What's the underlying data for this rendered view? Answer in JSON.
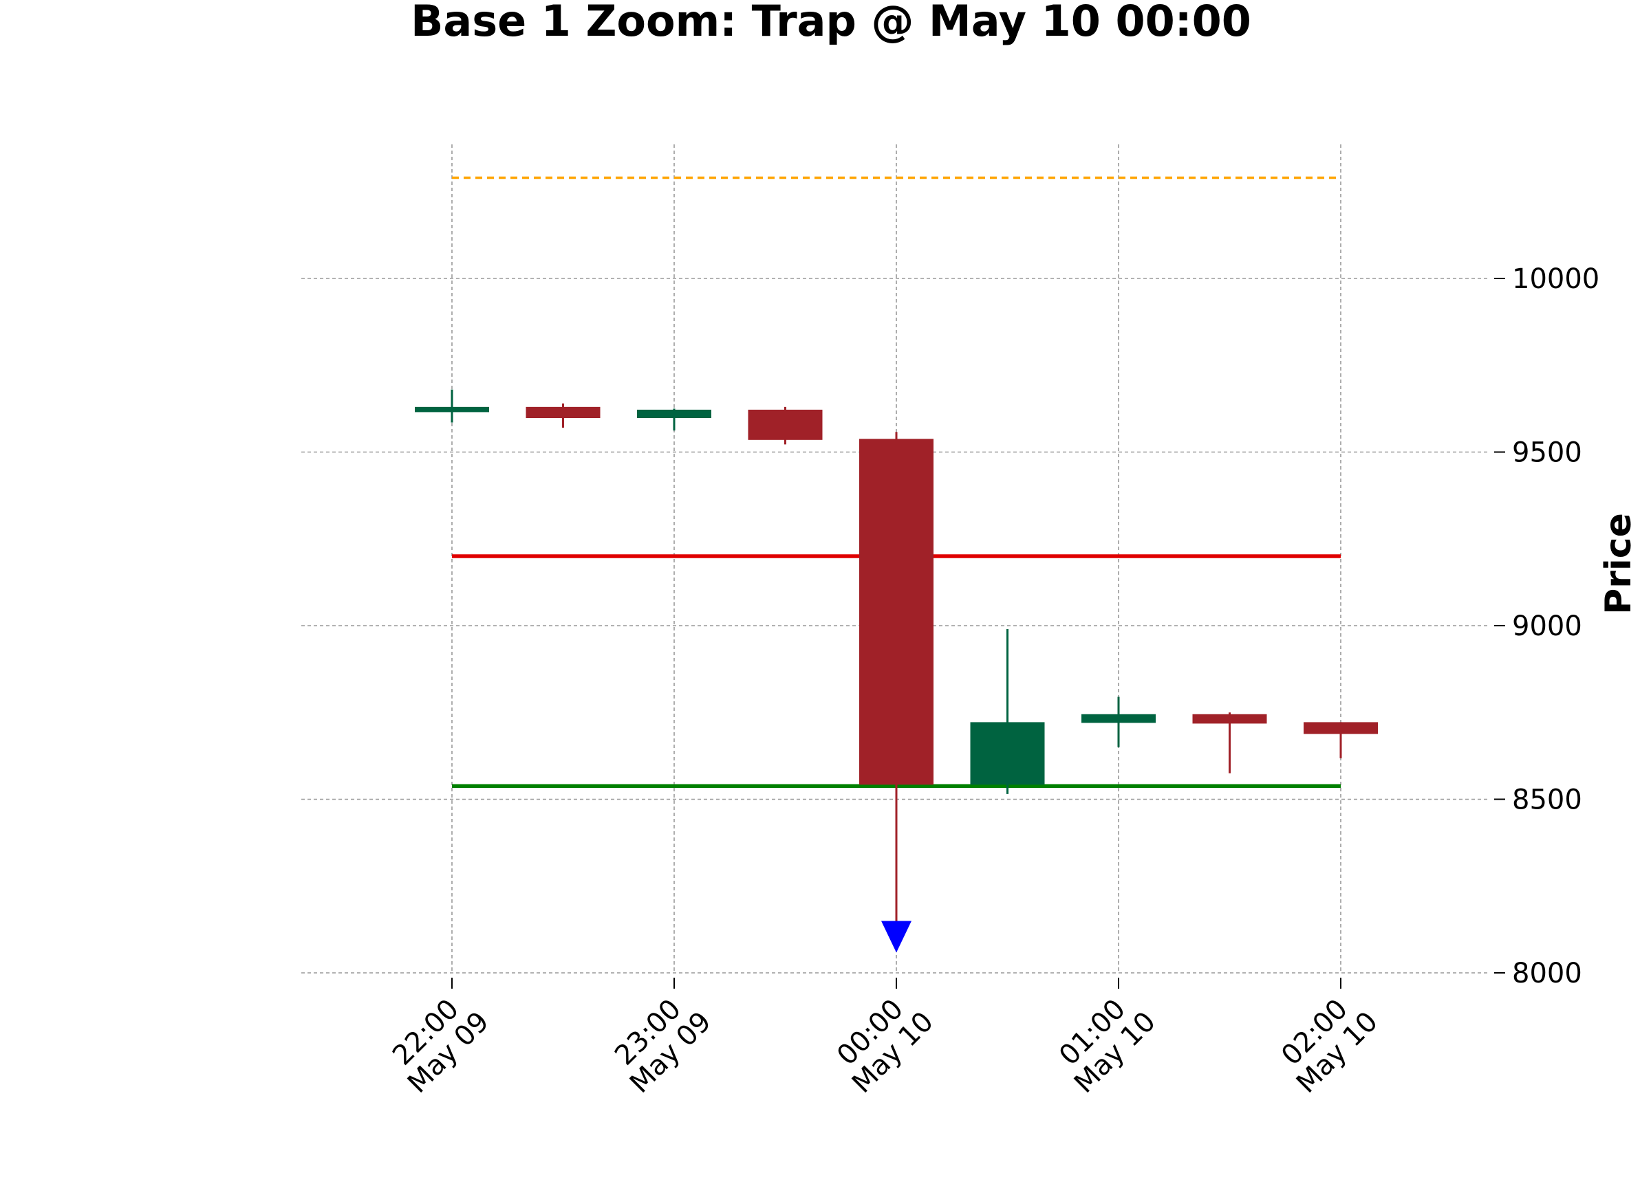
{
  "chart_data": {
    "type": "candlestick",
    "title": "Base 1 Zoom: Trap @ May 10 00:00",
    "xlabel": "",
    "ylabel": "Price",
    "ylim": [
      7950,
      10500
    ],
    "yticks": [
      "8000",
      "8500",
      "9000",
      "9500",
      "10000"
    ],
    "y_axis_side": "right",
    "grid": true,
    "x_ticks": [
      {
        "time": "22:00",
        "date": "May 09"
      },
      {
        "time": "23:00",
        "date": "May 09"
      },
      {
        "time": "00:00",
        "date": "May 10"
      },
      {
        "time": "01:00",
        "date": "May 10"
      },
      {
        "time": "02:00",
        "date": "May 10"
      }
    ],
    "candles": [
      {
        "time": "May 09 22:00",
        "open": 9615,
        "high": 9680,
        "low": 9585,
        "close": 9630
      },
      {
        "time": "May 09 22:30",
        "open": 9630,
        "high": 9640,
        "low": 9570,
        "close": 9598
      },
      {
        "time": "May 09 23:00",
        "open": 9598,
        "high": 9625,
        "low": 9562,
        "close": 9622
      },
      {
        "time": "May 09 23:30",
        "open": 9622,
        "high": 9630,
        "low": 9522,
        "close": 9535
      },
      {
        "time": "May 10 00:00",
        "open": 9538,
        "high": 9558,
        "low": 8110,
        "close": 8542
      },
      {
        "time": "May 10 00:30",
        "open": 8542,
        "high": 8990,
        "low": 8515,
        "close": 8722
      },
      {
        "time": "May 10 01:00",
        "open": 8720,
        "high": 8795,
        "low": 8650,
        "close": 8745
      },
      {
        "time": "May 10 01:30",
        "open": 8745,
        "high": 8750,
        "low": 8575,
        "close": 8718
      },
      {
        "time": "May 10 02:00",
        "open": 8722,
        "high": 8722,
        "low": 8618,
        "close": 8688
      }
    ],
    "horizontal_lines": [
      {
        "value": 10290,
        "color": "#ffa500",
        "style": "dashed"
      },
      {
        "value": 9200,
        "color": "#e00000",
        "style": "solid"
      },
      {
        "value": 8538,
        "color": "#008000",
        "style": "solid"
      }
    ],
    "markers": [
      {
        "time": "May 10 00:00",
        "value": 8100,
        "shape": "triangle-down",
        "color": "#0000ff"
      }
    ],
    "colors": {
      "up": "#006340",
      "down": "#a02128",
      "grid": "#999999"
    }
  }
}
